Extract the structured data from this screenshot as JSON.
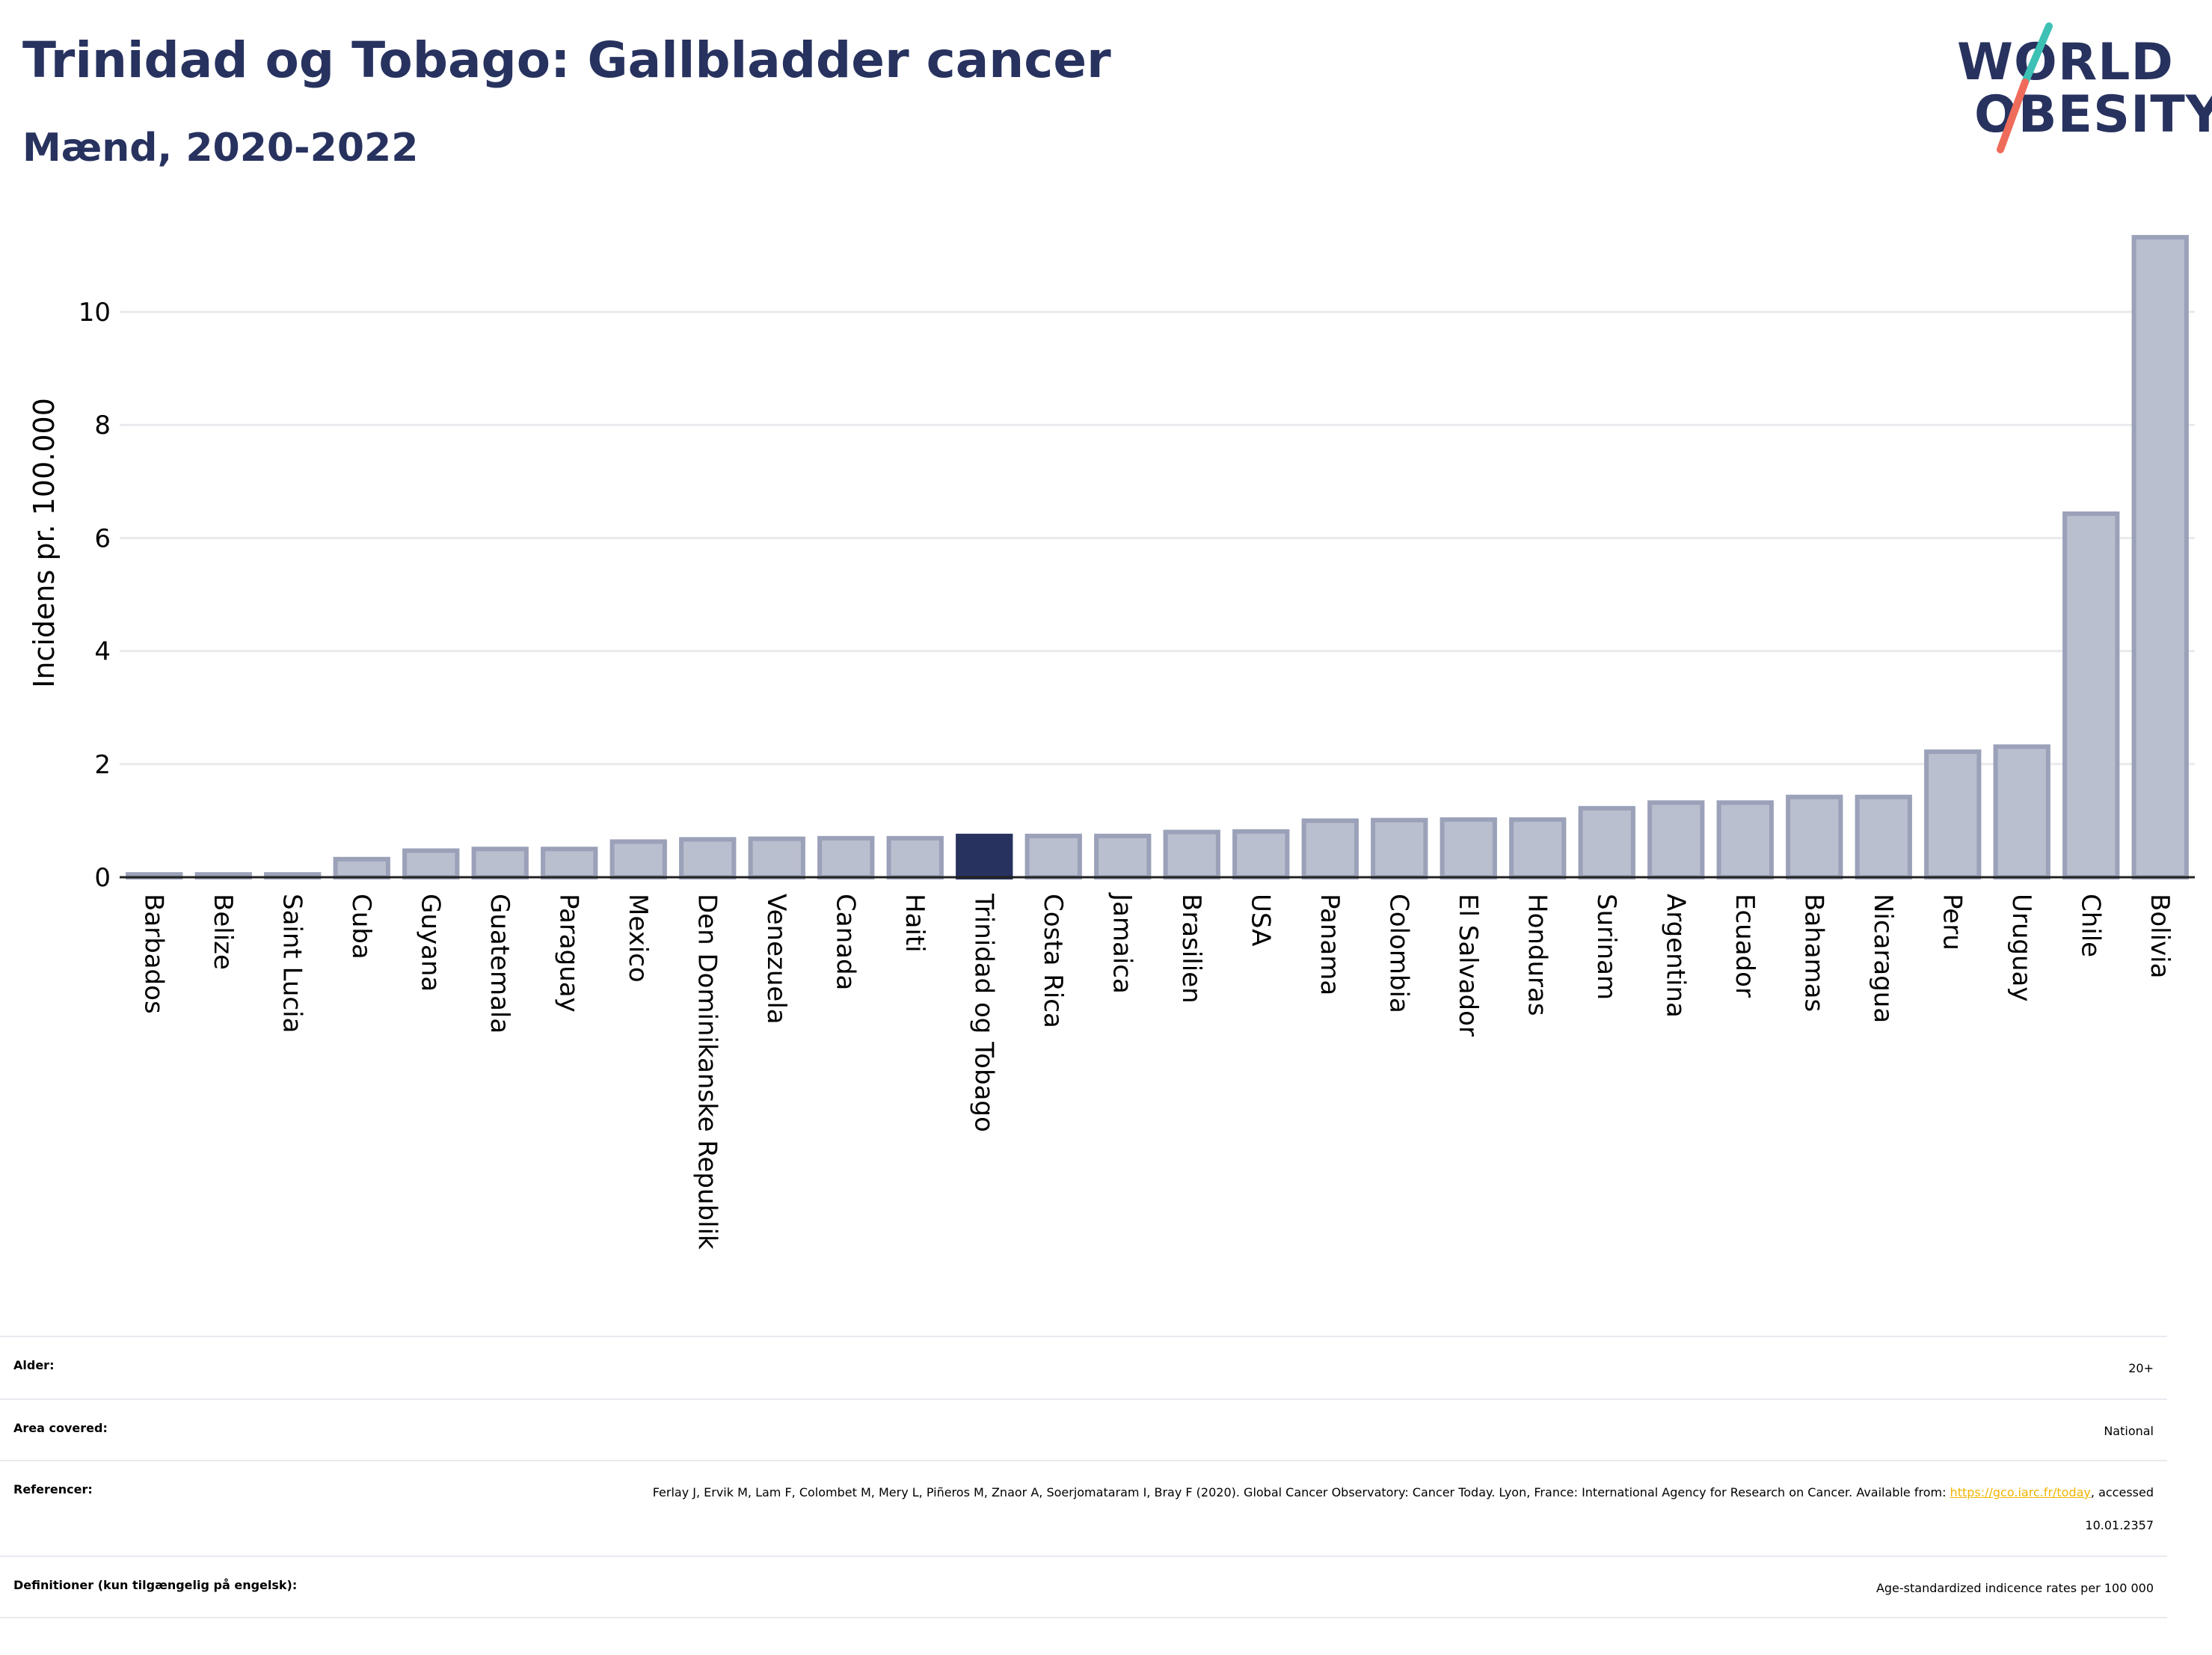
{
  "header": {
    "title": "Trinidad og Tobago: Gallbladder cancer",
    "subtitle": "Mænd, 2020-2022"
  },
  "logo": {
    "line1": "WORLD",
    "line2": "OBESITY",
    "slash_colors": [
      "#3cc1b4",
      "#ef6b5a"
    ]
  },
  "colors": {
    "bar": "#babfcf",
    "bar_edge": "#9aa1b8",
    "highlight": "#27325f",
    "grid": "#e9eaee",
    "title": "#27325f",
    "link": "#f0b400"
  },
  "chart_data": {
    "type": "bar",
    "ylabel": "Incidens pr. 100.000",
    "ylim": [
      0,
      11.6
    ],
    "yticks": [
      0,
      2,
      4,
      6,
      8,
      10
    ],
    "grid": true,
    "highlight": "Trinidad og Tobago",
    "categories": [
      "Barbados",
      "Belize",
      "Saint Lucia",
      "Cuba",
      "Guyana",
      "Guatemala",
      "Paraguay",
      "Mexico",
      "Den Dominikanske Republik",
      "Venezuela",
      "Canada",
      "Haiti",
      "Trinidad og Tobago",
      "Costa Rica",
      "Jamaica",
      "Brasilien",
      "USA",
      "Panama",
      "Colombia",
      "El Salvador",
      "Honduras",
      "Surinam",
      "Argentina",
      "Ecuador",
      "Bahamas",
      "Nicaragua",
      "Peru",
      "Uruguay",
      "Chile",
      "Bolivia"
    ],
    "values": [
      0.05,
      0.05,
      0.05,
      0.32,
      0.47,
      0.5,
      0.5,
      0.63,
      0.67,
      0.68,
      0.69,
      0.69,
      0.73,
      0.73,
      0.73,
      0.8,
      0.81,
      1.0,
      1.01,
      1.02,
      1.02,
      1.22,
      1.32,
      1.32,
      1.42,
      1.42,
      2.22,
      2.31,
      6.43,
      11.32
    ]
  },
  "meta": {
    "rows": [
      {
        "label": "Alder:",
        "value": "20+"
      },
      {
        "label": "Area covered:",
        "value": "National"
      },
      {
        "label": "Referencer:",
        "value_part1": "Ferlay J, Ervik M, Lam F, Colombet M, Mery L, Piñeros M, Znaor A, Soerjomataram I, Bray F (2020). Global Cancer Observatory: Cancer Today. Lyon, France: International Agency for Research on Cancer. Available from: ",
        "link": "https://gco.iarc.fr/today",
        "value_part2": ", accessed 10.01.2357"
      },
      {
        "label": "Definitioner (kun tilgængelig på engelsk):",
        "value": "Age-standardized indicence rates per 100 000"
      }
    ]
  }
}
